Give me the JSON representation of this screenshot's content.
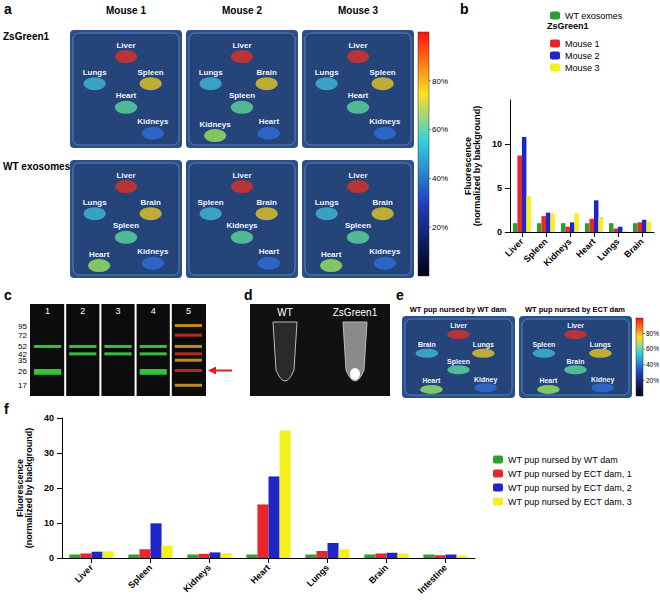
{
  "chart_data": [
    {
      "panel": "b",
      "type": "bar",
      "ylabel": [
        "Fluorescence",
        "(normalized by background)"
      ],
      "categories": [
        "Liver",
        "Spleen",
        "Kidneys",
        "Heart",
        "Lungs",
        "Brain"
      ],
      "legend_title": "ZsGreen1",
      "series": [
        {
          "name": "WT exosomes",
          "color": "#2ca02c",
          "values": [
            1,
            1,
            1,
            1,
            1,
            1
          ]
        },
        {
          "name": "Mouse 1",
          "color": "#e8262b",
          "values": [
            8.7,
            1.8,
            0.6,
            1.5,
            0.4,
            1.1
          ]
        },
        {
          "name": "Mouse 2",
          "color": "#1f26c9",
          "values": [
            10.8,
            2.2,
            1.1,
            3.6,
            0.6,
            1.4
          ]
        },
        {
          "name": "Mouse 3",
          "color": "#f4f01e",
          "values": [
            4.1,
            2.1,
            2.1,
            1.7,
            0.1,
            1.2
          ]
        }
      ],
      "ylim": [
        0,
        15
      ],
      "yticks": [
        0,
        5,
        10
      ],
      "legend": "top-right",
      "grid": false
    },
    {
      "panel": "f",
      "type": "bar",
      "ylabel": [
        "Fluorescence",
        "(normalized by background)"
      ],
      "categories": [
        "Liver",
        "Spleen",
        "Kidneys",
        "Heart",
        "Lungs",
        "Brain",
        "Intestine"
      ],
      "series": [
        {
          "name": "WT pup nursed by WT dam",
          "color": "#2ca02c",
          "values": [
            1,
            1,
            1,
            1,
            1,
            1,
            1
          ]
        },
        {
          "name": "WT pup nursed by ECT dam, 1",
          "color": "#e8262b",
          "values": [
            1.3,
            2.5,
            1.2,
            15.3,
            2.0,
            1.3,
            0.8
          ]
        },
        {
          "name": "WT pup nursed by ECT dam, 2",
          "color": "#1f26c9",
          "values": [
            1.8,
            9.9,
            1.6,
            23.3,
            4.3,
            1.5,
            1.0
          ]
        },
        {
          "name": "WT pup nursed by ECT dam, 3",
          "color": "#f4f01e",
          "values": [
            1.9,
            3.5,
            1.4,
            36.4,
            2.5,
            1.3,
            0.7
          ]
        }
      ],
      "ylim": [
        0,
        40
      ],
      "yticks": [
        0,
        10,
        20,
        30,
        40
      ],
      "legend": "right",
      "grid": false
    }
  ],
  "panels": {
    "a": {
      "letter": "a",
      "columns": [
        "Mouse 1",
        "Mouse 2",
        "Mouse 3"
      ],
      "rows": [
        {
          "label": "ZsGreen1",
          "tiles": [
            [
              "Liver",
              "Lungs",
              "Spleen",
              "Heart",
              "Kidneys"
            ],
            [
              "Liver",
              "Lungs",
              "Brain",
              "Spleen",
              "Heart",
              "Kidneys"
            ],
            [
              "Liver",
              "Lungs",
              "Spleen",
              "Heart",
              "Kidneys"
            ]
          ]
        },
        {
          "label": "WT exosomes",
          "tiles": [
            [
              "Liver",
              "Lungs",
              "Brain",
              "Spleen",
              "Kidneys",
              "Heart"
            ],
            [
              "Liver",
              "Spleen",
              "Brain",
              "Kidneys",
              "Heart"
            ],
            [
              "Liver",
              "Lungs",
              "Brain",
              "Spleen",
              "Kidneys",
              "Heart"
            ]
          ]
        }
      ],
      "colorbar_range": [
        0,
        100
      ],
      "colorbar_ticks": [
        {
          "value": 80,
          "label": "80%"
        },
        {
          "value": 60,
          "label": "60%"
        },
        {
          "value": 40,
          "label": "40%"
        },
        {
          "value": 20,
          "label": "20%"
        }
      ]
    },
    "b": {
      "letter": "b"
    },
    "c": {
      "letter": "c",
      "lanes": [
        1,
        2,
        3,
        4,
        5
      ],
      "markers": [
        95,
        72,
        52,
        42,
        35,
        26,
        17
      ]
    },
    "d": {
      "letter": "d",
      "labels": [
        "WT",
        "ZsGreen1"
      ]
    },
    "e": {
      "letter": "e",
      "tiles": [
        {
          "title": "WT pup nursed by WT dam",
          "organs": [
            "Liver",
            "Brain",
            "Lungs",
            "Spleen",
            "Kidney",
            "Heart"
          ]
        },
        {
          "title": "WT pup nursed by ECT dam",
          "organs": [
            "Liver",
            "Spleen",
            "Lungs",
            "Brain",
            "Kidney",
            "Heart"
          ]
        }
      ],
      "colorbar_range": [
        0,
        100
      ],
      "colorbar_ticks": [
        {
          "value": 80,
          "label": "80%"
        },
        {
          "value": 60,
          "label": "60%"
        },
        {
          "value": 40,
          "label": "40%"
        },
        {
          "value": 20,
          "label": "20%"
        }
      ]
    },
    "f": {
      "letter": "f"
    }
  }
}
